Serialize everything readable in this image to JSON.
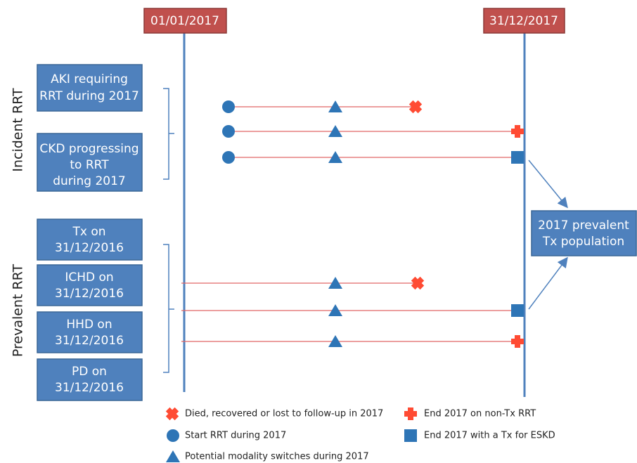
{
  "header": {
    "start_date": "01/01/2017",
    "end_date": "31/12/2017"
  },
  "groups": [
    {
      "label": "Incident RRT",
      "boxes": [
        [
          "AKI requiring",
          "RRT during 2017"
        ],
        [
          "CKD progressing",
          "to RRT",
          "during 2017"
        ]
      ]
    },
    {
      "label": "Prevalent RRT",
      "boxes": [
        [
          "Tx on",
          "31/12/2016"
        ],
        [
          "ICHD on",
          "31/12/2016"
        ],
        [
          "HHD on",
          "31/12/2016"
        ],
        [
          "PD on",
          "31/12/2016"
        ]
      ]
    }
  ],
  "target": [
    "2017 prevalent",
    "Tx population"
  ],
  "legend": [
    "Died, recovered or lost to follow-up in 2017",
    "End 2017 on non-Tx RRT",
    "Start RRT during 2017",
    "End 2017 with a Tx for ESKD",
    "Potential modality switches during 2017"
  ]
}
